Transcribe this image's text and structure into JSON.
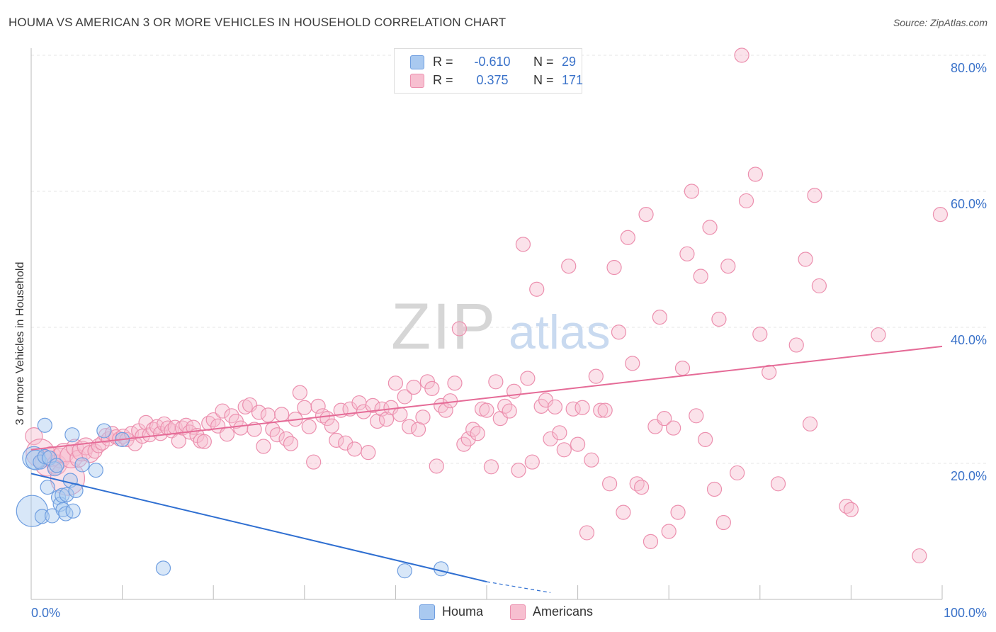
{
  "title": "HOUMA VS AMERICAN 3 OR MORE VEHICLES IN HOUSEHOLD CORRELATION CHART",
  "source": "Source: ZipAtlas.com",
  "watermark": {
    "zip": "ZIP",
    "atlas": "atlas"
  },
  "legend_top": [
    {
      "r_label": "R =",
      "r_value": "-0.610",
      "n_label": "N =",
      "n_value": "29",
      "color": "#a9c9f0",
      "border": "#6f9ee0"
    },
    {
      "r_label": "R =",
      "r_value": "0.375",
      "n_label": "N =",
      "n_value": "171",
      "color": "#f7bfd0",
      "border": "#ec8fae"
    }
  ],
  "legend_bottom": [
    {
      "label": "Houma",
      "color": "#a9c9f0",
      "border": "#6f9ee0"
    },
    {
      "label": "Americans",
      "color": "#f7bfd0",
      "border": "#ec8fae"
    }
  ],
  "chart_data": {
    "type": "scatter",
    "title": "HOUMA VS AMERICAN 3 OR MORE VEHICLES IN HOUSEHOLD CORRELATION CHART",
    "xlabel": "",
    "ylabel": "3 or more Vehicles in Household",
    "xlim": [
      0,
      100
    ],
    "ylim": [
      0,
      80
    ],
    "x_tick_labels": [
      "0.0%",
      "100.0%"
    ],
    "y_ticks": [
      {
        "value": 20,
        "label": "20.0%"
      },
      {
        "value": 40,
        "label": "40.0%"
      },
      {
        "value": 60,
        "label": "60.0%"
      },
      {
        "value": 80,
        "label": "80.0%"
      }
    ],
    "grid": true,
    "legend_position": "bottom",
    "series": [
      {
        "name": "Houma",
        "color": "#6f9ee0",
        "fill": "#a9c9f0",
        "line_color": "#2f6fd1",
        "trend": {
          "x": [
            0,
            50
          ],
          "y": [
            18.5,
            2.6
          ],
          "dashed_to": [
            57,
            1.0
          ]
        },
        "points": [
          [
            0.1,
            13.0,
            22
          ],
          [
            0.3,
            20.8,
            16
          ],
          [
            0.5,
            20.5,
            14
          ],
          [
            1.0,
            20.2,
            10
          ],
          [
            1.2,
            12.2,
            10
          ],
          [
            1.5,
            21.0,
            10
          ],
          [
            1.5,
            25.6,
            10
          ],
          [
            1.8,
            16.5,
            10
          ],
          [
            2.0,
            20.8,
            10
          ],
          [
            2.3,
            12.3,
            10
          ],
          [
            2.6,
            19.2,
            10
          ],
          [
            2.8,
            19.7,
            10
          ],
          [
            3.0,
            15.0,
            10
          ],
          [
            3.2,
            14.0,
            10
          ],
          [
            3.4,
            15.3,
            10
          ],
          [
            3.5,
            13.2,
            10
          ],
          [
            3.8,
            12.6,
            10
          ],
          [
            3.9,
            15.4,
            10
          ],
          [
            4.3,
            17.5,
            10
          ],
          [
            4.5,
            24.2,
            10
          ],
          [
            4.6,
            13.0,
            10
          ],
          [
            4.9,
            16.0,
            10
          ],
          [
            5.6,
            19.8,
            10
          ],
          [
            7.1,
            19.0,
            10
          ],
          [
            8.0,
            24.8,
            10
          ],
          [
            10.0,
            23.5,
            10
          ],
          [
            14.5,
            4.6,
            10
          ],
          [
            41.0,
            4.2,
            10
          ],
          [
            45.0,
            4.5,
            10
          ]
        ]
      },
      {
        "name": "Americans",
        "color": "#ec8fae",
        "fill": "#f7bfd0",
        "line_color": "#e56b97",
        "trend": {
          "x": [
            0,
            100
          ],
          "y": [
            22.0,
            37.2
          ]
        },
        "points": [
          [
            0.3,
            24.0,
            12
          ],
          [
            1.0,
            21.5,
            20
          ],
          [
            1.8,
            20.0,
            18
          ],
          [
            2.2,
            21.0,
            14
          ],
          [
            2.8,
            19.8,
            14
          ],
          [
            3.2,
            20.8,
            14
          ],
          [
            3.6,
            21.5,
            14
          ],
          [
            4.0,
            17.8,
            24
          ],
          [
            4.4,
            21.0,
            16
          ],
          [
            4.8,
            22.3,
            12
          ],
          [
            5.2,
            20.7,
            12
          ],
          [
            5.6,
            21.8,
            14
          ],
          [
            6.0,
            22.5,
            12
          ],
          [
            6.5,
            21.4,
            12
          ],
          [
            7.0,
            21.8,
            10
          ],
          [
            7.4,
            22.6,
            10
          ],
          [
            7.8,
            23.0,
            10
          ],
          [
            8.2,
            24.1,
            10
          ],
          [
            8.5,
            23.6,
            10
          ],
          [
            8.9,
            24.4,
            10
          ],
          [
            9.3,
            23.9,
            10
          ],
          [
            9.7,
            23.6,
            10
          ],
          [
            10.1,
            24.0,
            10
          ],
          [
            10.5,
            23.5,
            10
          ],
          [
            11.0,
            24.4,
            10
          ],
          [
            11.4,
            22.9,
            10
          ],
          [
            11.8,
            24.8,
            10
          ],
          [
            12.2,
            24.0,
            10
          ],
          [
            12.6,
            26.0,
            10
          ],
          [
            13.0,
            24.2,
            10
          ],
          [
            13.4,
            25.0,
            10
          ],
          [
            13.8,
            25.4,
            10
          ],
          [
            14.2,
            24.4,
            10
          ],
          [
            14.6,
            25.8,
            10
          ],
          [
            15.0,
            25.2,
            10
          ],
          [
            15.4,
            24.8,
            10
          ],
          [
            15.8,
            25.3,
            10
          ],
          [
            16.2,
            23.3,
            10
          ],
          [
            16.6,
            25.2,
            10
          ],
          [
            17.0,
            25.6,
            10
          ],
          [
            17.4,
            24.6,
            10
          ],
          [
            17.8,
            25.3,
            10
          ],
          [
            18.2,
            24.1,
            10
          ],
          [
            18.6,
            23.3,
            10
          ],
          [
            19.0,
            23.2,
            10
          ],
          [
            19.5,
            25.9,
            10
          ],
          [
            20.0,
            26.4,
            10
          ],
          [
            20.5,
            25.5,
            10
          ],
          [
            21.0,
            27.7,
            10
          ],
          [
            21.5,
            24.3,
            10
          ],
          [
            22.0,
            27.0,
            10
          ],
          [
            22.5,
            26.2,
            10
          ],
          [
            23.0,
            25.2,
            10
          ],
          [
            23.5,
            28.3,
            10
          ],
          [
            24.0,
            28.6,
            10
          ],
          [
            24.5,
            25.0,
            10
          ],
          [
            25.0,
            27.5,
            10
          ],
          [
            25.5,
            22.5,
            10
          ],
          [
            26.0,
            27.1,
            10
          ],
          [
            26.5,
            25.0,
            10
          ],
          [
            27.0,
            24.2,
            10
          ],
          [
            27.5,
            27.2,
            10
          ],
          [
            28.0,
            23.6,
            10
          ],
          [
            28.5,
            22.9,
            10
          ],
          [
            29.0,
            26.5,
            10
          ],
          [
            29.5,
            30.4,
            10
          ],
          [
            30.0,
            28.2,
            10
          ],
          [
            30.5,
            25.4,
            10
          ],
          [
            31.0,
            20.2,
            10
          ],
          [
            31.5,
            28.4,
            10
          ],
          [
            32.0,
            27.0,
            10
          ],
          [
            32.5,
            26.6,
            10
          ],
          [
            33.0,
            25.5,
            10
          ],
          [
            33.5,
            23.4,
            10
          ],
          [
            34.0,
            27.8,
            10
          ],
          [
            34.5,
            23.0,
            10
          ],
          [
            35.0,
            28.0,
            10
          ],
          [
            35.5,
            22.1,
            10
          ],
          [
            36.0,
            28.9,
            10
          ],
          [
            36.5,
            27.6,
            10
          ],
          [
            37.0,
            21.6,
            10
          ],
          [
            37.5,
            28.5,
            10
          ],
          [
            38.0,
            26.2,
            10
          ],
          [
            38.5,
            28.0,
            10
          ],
          [
            39.0,
            26.5,
            10
          ],
          [
            39.5,
            28.2,
            10
          ],
          [
            40.0,
            31.8,
            10
          ],
          [
            40.5,
            27.2,
            10
          ],
          [
            41.0,
            29.8,
            10
          ],
          [
            41.5,
            25.4,
            10
          ],
          [
            42.0,
            31.2,
            10
          ],
          [
            42.5,
            25.0,
            10
          ],
          [
            43.0,
            26.8,
            10
          ],
          [
            43.5,
            32.0,
            10
          ],
          [
            44.0,
            31.0,
            10
          ],
          [
            44.5,
            19.6,
            10
          ],
          [
            45.0,
            28.5,
            10
          ],
          [
            45.5,
            27.8,
            10
          ],
          [
            46.0,
            29.2,
            10
          ],
          [
            46.5,
            31.8,
            10
          ],
          [
            47.0,
            39.8,
            10
          ],
          [
            47.5,
            22.8,
            10
          ],
          [
            48.0,
            23.6,
            10
          ],
          [
            48.5,
            25.0,
            10
          ],
          [
            49.0,
            24.4,
            10
          ],
          [
            49.5,
            28.0,
            10
          ],
          [
            50.0,
            27.8,
            10
          ],
          [
            50.5,
            19.5,
            10
          ],
          [
            51.0,
            32.0,
            10
          ],
          [
            51.5,
            26.6,
            10
          ],
          [
            52.0,
            28.4,
            10
          ],
          [
            52.5,
            27.7,
            10
          ],
          [
            53.0,
            30.6,
            10
          ],
          [
            53.5,
            19.0,
            10
          ],
          [
            54.0,
            52.2,
            10
          ],
          [
            54.5,
            32.5,
            10
          ],
          [
            55.0,
            20.2,
            10
          ],
          [
            55.5,
            45.6,
            10
          ],
          [
            56.0,
            28.4,
            10
          ],
          [
            56.5,
            29.3,
            10
          ],
          [
            57.0,
            23.6,
            10
          ],
          [
            57.5,
            28.3,
            10
          ],
          [
            58.0,
            24.5,
            10
          ],
          [
            58.5,
            22.0,
            10
          ],
          [
            59.0,
            49.0,
            10
          ],
          [
            59.5,
            28.0,
            10
          ],
          [
            60.0,
            22.8,
            10
          ],
          [
            60.5,
            28.2,
            10
          ],
          [
            61.0,
            9.8,
            10
          ],
          [
            61.5,
            20.5,
            10
          ],
          [
            62.0,
            32.8,
            10
          ],
          [
            62.5,
            27.8,
            10
          ],
          [
            63.0,
            27.8,
            10
          ],
          [
            63.5,
            17.0,
            10
          ],
          [
            64.0,
            48.8,
            10
          ],
          [
            64.5,
            39.3,
            10
          ],
          [
            65.0,
            12.8,
            10
          ],
          [
            65.5,
            53.2,
            10
          ],
          [
            66.0,
            34.7,
            10
          ],
          [
            66.5,
            17.0,
            10
          ],
          [
            67.0,
            16.5,
            10
          ],
          [
            67.5,
            56.6,
            10
          ],
          [
            68.0,
            8.5,
            10
          ],
          [
            68.5,
            25.4,
            10
          ],
          [
            69.0,
            41.5,
            10
          ],
          [
            69.5,
            26.6,
            10
          ],
          [
            70.0,
            10.0,
            10
          ],
          [
            70.5,
            25.2,
            10
          ],
          [
            71.0,
            12.8,
            10
          ],
          [
            71.5,
            34.0,
            10
          ],
          [
            72.0,
            50.8,
            10
          ],
          [
            72.5,
            60.0,
            10
          ],
          [
            73.0,
            27.0,
            10
          ],
          [
            73.5,
            47.5,
            10
          ],
          [
            74.0,
            23.5,
            10
          ],
          [
            74.5,
            54.7,
            10
          ],
          [
            75.0,
            16.2,
            10
          ],
          [
            75.5,
            41.2,
            10
          ],
          [
            76.0,
            11.3,
            10
          ],
          [
            76.5,
            49.0,
            10
          ],
          [
            77.5,
            18.6,
            10
          ],
          [
            78.0,
            80.0,
            10
          ],
          [
            78.5,
            58.6,
            10
          ],
          [
            79.5,
            62.5,
            10
          ],
          [
            80.0,
            39.0,
            10
          ],
          [
            81.0,
            33.4,
            10
          ],
          [
            82.0,
            17.0,
            10
          ],
          [
            84.0,
            37.4,
            10
          ],
          [
            85.0,
            50.0,
            10
          ],
          [
            85.5,
            25.8,
            10
          ],
          [
            86.0,
            59.4,
            10
          ],
          [
            86.5,
            46.1,
            10
          ],
          [
            89.5,
            13.7,
            10
          ],
          [
            90.0,
            13.2,
            10
          ],
          [
            93.0,
            38.9,
            10
          ],
          [
            97.5,
            6.4,
            10
          ],
          [
            99.8,
            56.6,
            10
          ]
        ]
      }
    ]
  }
}
